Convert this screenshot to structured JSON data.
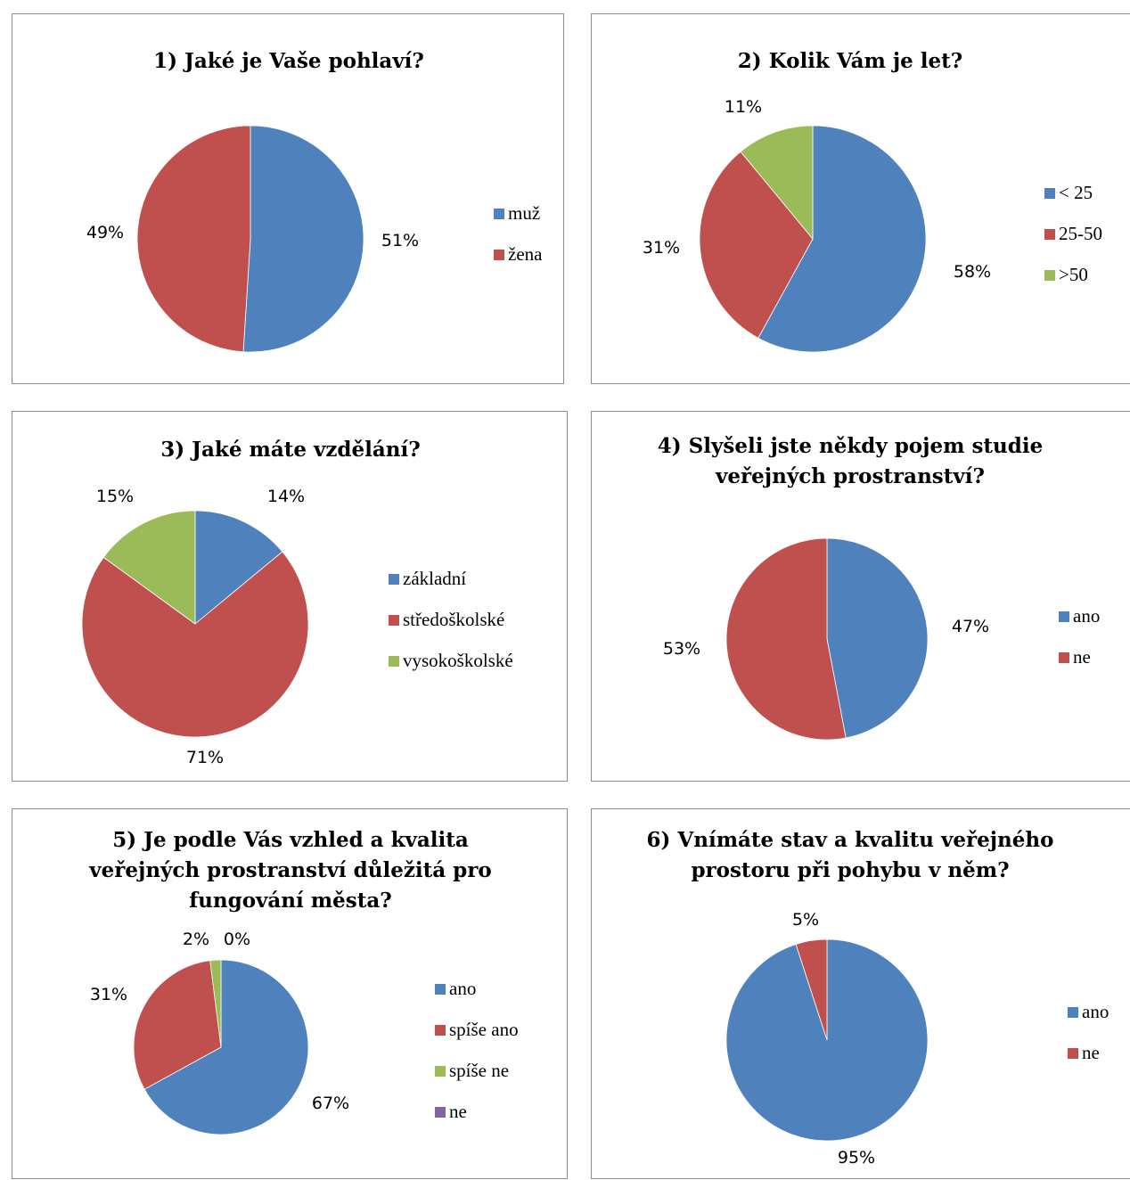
{
  "chart_data": [
    {
      "type": "pie",
      "title": [
        "1) Jaké je Vaše pohlaví?"
      ],
      "categories": [
        "muž",
        "žena"
      ],
      "values": [
        51,
        49
      ],
      "labels": [
        "51%",
        "49%"
      ],
      "colors": [
        "#4f81bd",
        "#c0504d"
      ],
      "legend": "right"
    },
    {
      "type": "pie",
      "title": [
        "2) Kolik Vám je let?"
      ],
      "categories": [
        "< 25",
        "25-50",
        ">50"
      ],
      "values": [
        58,
        31,
        11
      ],
      "labels": [
        "58%",
        "31%",
        "11%"
      ],
      "colors": [
        "#4f81bd",
        "#c0504d",
        "#9bbb59"
      ],
      "legend": "right"
    },
    {
      "type": "pie",
      "title": [
        "3) Jaké máte vzdělání?"
      ],
      "categories": [
        "základní",
        "středoškolské",
        "vysokoškolské"
      ],
      "values": [
        14,
        71,
        15
      ],
      "labels": [
        "14%",
        "71%",
        "15%"
      ],
      "colors": [
        "#4f81bd",
        "#c0504d",
        "#9bbb59"
      ],
      "legend": "right"
    },
    {
      "type": "pie",
      "title": [
        "4) Slyšeli jste někdy pojem studie",
        "veřejných prostranství?"
      ],
      "categories": [
        "ano",
        "ne"
      ],
      "values": [
        47,
        53
      ],
      "labels": [
        "47%",
        "53%"
      ],
      "colors": [
        "#4f81bd",
        "#c0504d"
      ],
      "legend": "right"
    },
    {
      "type": "pie",
      "title": [
        "5) Je podle Vás vzhled a kvalita",
        "veřejných prostranství důležitá pro",
        "fungování města?"
      ],
      "categories": [
        "ano",
        "spíše ano",
        "spíše ne",
        "ne"
      ],
      "values": [
        67,
        31,
        2,
        0
      ],
      "labels": [
        "67%",
        "31%",
        "2%",
        "0%"
      ],
      "colors": [
        "#4f81bd",
        "#c0504d",
        "#9bbb59",
        "#8064a2"
      ],
      "legend": "right"
    },
    {
      "type": "pie",
      "title": [
        "6) Vnímáte stav a kvalitu veřejného",
        "prostoru při pohybu v něm?"
      ],
      "categories": [
        "ano",
        "ne"
      ],
      "values": [
        95,
        5
      ],
      "labels": [
        "95%",
        "5%"
      ],
      "colors": [
        "#4f81bd",
        "#c0504d"
      ],
      "legend": "right"
    }
  ]
}
